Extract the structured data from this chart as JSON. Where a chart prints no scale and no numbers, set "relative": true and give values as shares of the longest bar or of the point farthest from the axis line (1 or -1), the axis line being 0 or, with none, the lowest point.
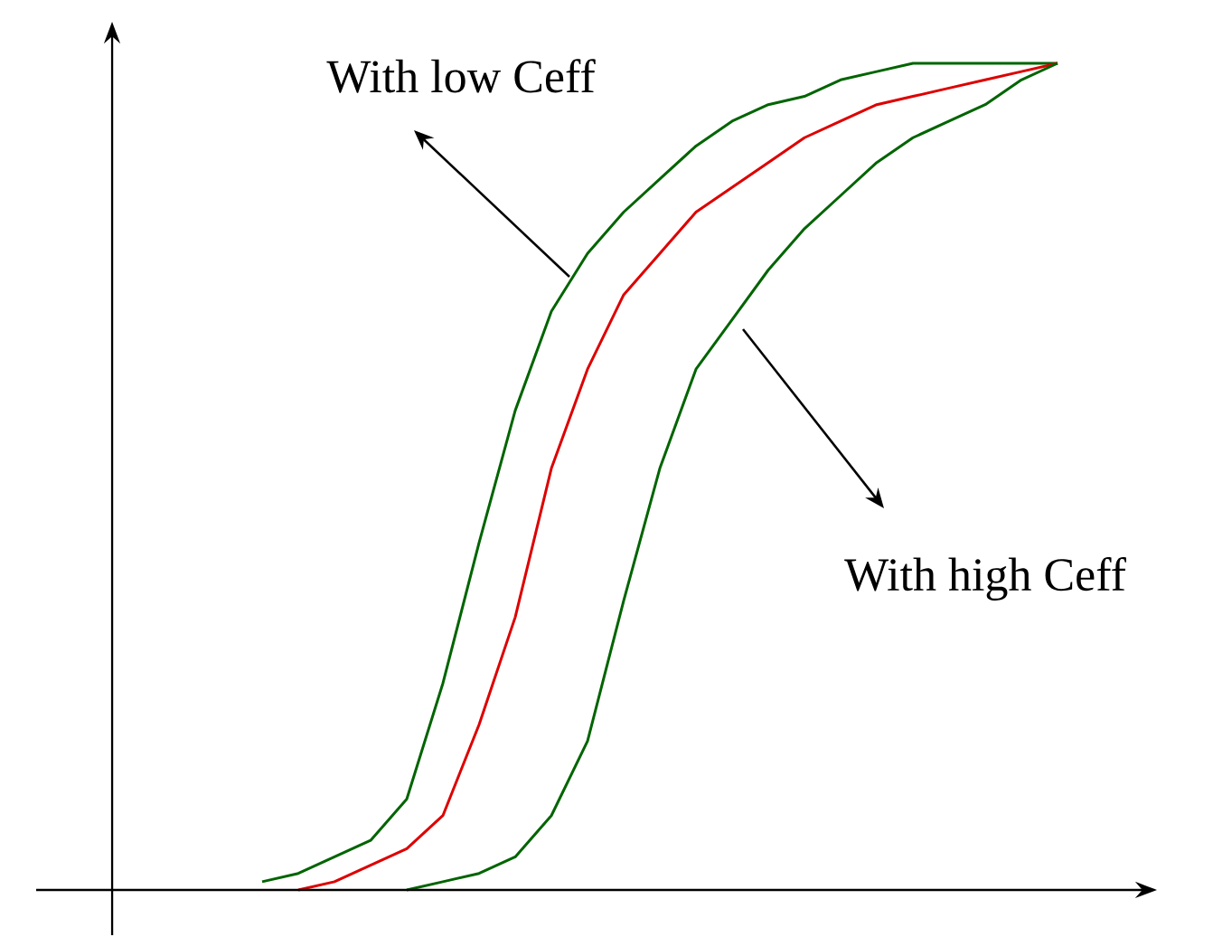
{
  "chart_data": {
    "type": "line",
    "relative": true,
    "categories": [
      null,
      null,
      null,
      null,
      null,
      null,
      null,
      null,
      null,
      null,
      null,
      null,
      null,
      null,
      null,
      null,
      null,
      null,
      null,
      null,
      null,
      null,
      null,
      null
    ],
    "series": [
      {
        "color": "#006400",
        "values": [
          null,
          0.01,
          0.02,
          0.04,
          0.06,
          0.11,
          0.25,
          0.42,
          0.58,
          0.7,
          0.77,
          0.82,
          0.86,
          0.9,
          0.93,
          0.95,
          0.96,
          0.98,
          0.99,
          1,
          1,
          1,
          1,
          1
        ]
      },
      {
        "color": "#dd0000",
        "values": [
          null,
          null,
          0.0,
          0.01,
          0.03,
          0.05,
          0.09,
          0.2,
          0.33,
          0.51,
          0.63,
          0.72,
          0.77,
          0.82,
          0.85,
          0.88,
          0.91,
          0.93,
          0.95,
          0.96,
          0.97,
          0.98,
          0.99,
          1
        ]
      },
      {
        "color": "#006400",
        "values": [
          null,
          null,
          null,
          null,
          null,
          0.0,
          0.01,
          0.02,
          0.04,
          0.09,
          0.18,
          0.35,
          0.51,
          0.63,
          0.69,
          0.75,
          0.8,
          0.84,
          0.88,
          0.91,
          0.93,
          0.95,
          0.98,
          1
        ]
      }
    ],
    "annotations": [
      "With low Ceff",
      "With high Ceff"
    ]
  }
}
